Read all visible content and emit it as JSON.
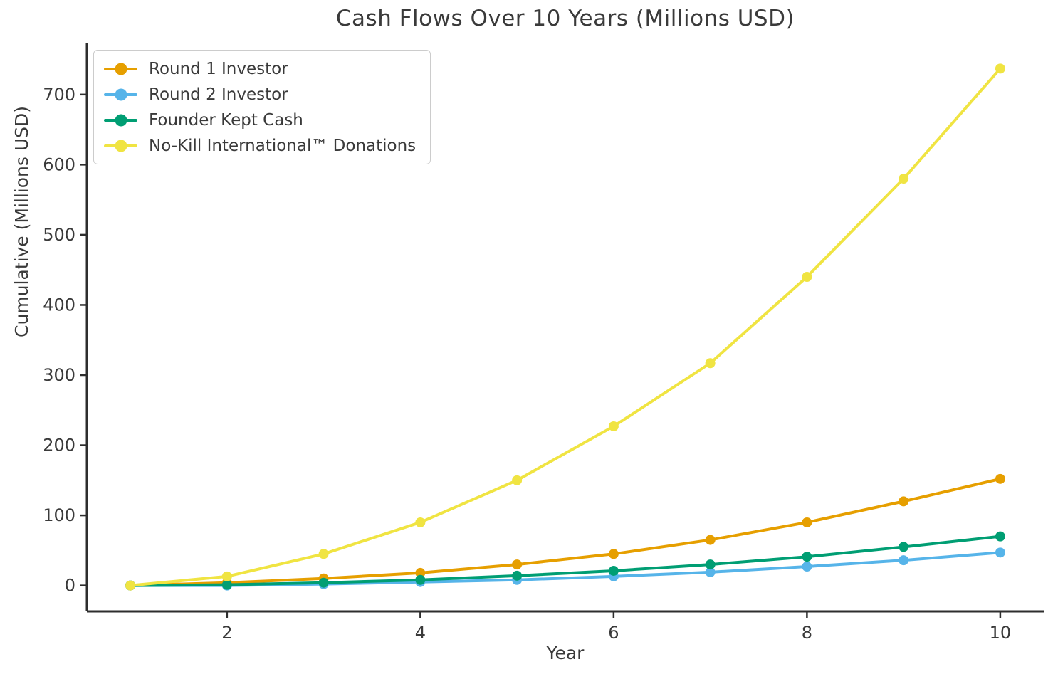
{
  "figure": {
    "title": "Cash Flows Over 10 Years (Millions USD)",
    "xlabel": "Year",
    "ylabel": "Cumulative (Millions USD)"
  },
  "chart_data": {
    "type": "line",
    "title": "Cash Flows Over 10 Years (Millions USD)",
    "xlabel": "Year",
    "ylabel": "Cumulative (Millions USD)",
    "x": [
      1,
      2,
      3,
      4,
      5,
      6,
      7,
      8,
      9,
      10
    ],
    "series": [
      {
        "name": "Round 1 Investor",
        "color": "#E69F00",
        "values": [
          0,
          4,
          10,
          18,
          30,
          45,
          65,
          90,
          120,
          152
        ]
      },
      {
        "name": "Round 2 Investor",
        "color": "#56B4E9",
        "values": [
          0,
          0,
          2,
          5,
          8,
          13,
          19,
          27,
          36,
          47
        ]
      },
      {
        "name": "Founder Kept Cash",
        "color": "#009E73",
        "values": [
          0,
          1,
          4,
          8,
          14,
          21,
          30,
          41,
          55,
          70
        ]
      },
      {
        "name": "No-Kill International™ Donations",
        "color": "#F0E442",
        "values": [
          0,
          13,
          45,
          90,
          150,
          227,
          317,
          440,
          580,
          737
        ]
      }
    ],
    "xticks": [
      2,
      4,
      6,
      8,
      10
    ],
    "yticks": [
      0,
      100,
      200,
      300,
      400,
      500,
      600,
      700
    ],
    "xlim": [
      0.55,
      10.45
    ],
    "ylim": [
      -36.9,
      773.9
    ],
    "grid": false,
    "legend_position": "upper left",
    "line_width": 4,
    "marker_radius": 7,
    "axis_color": "#2e2e2e",
    "text_color": "#3a3a3a"
  }
}
